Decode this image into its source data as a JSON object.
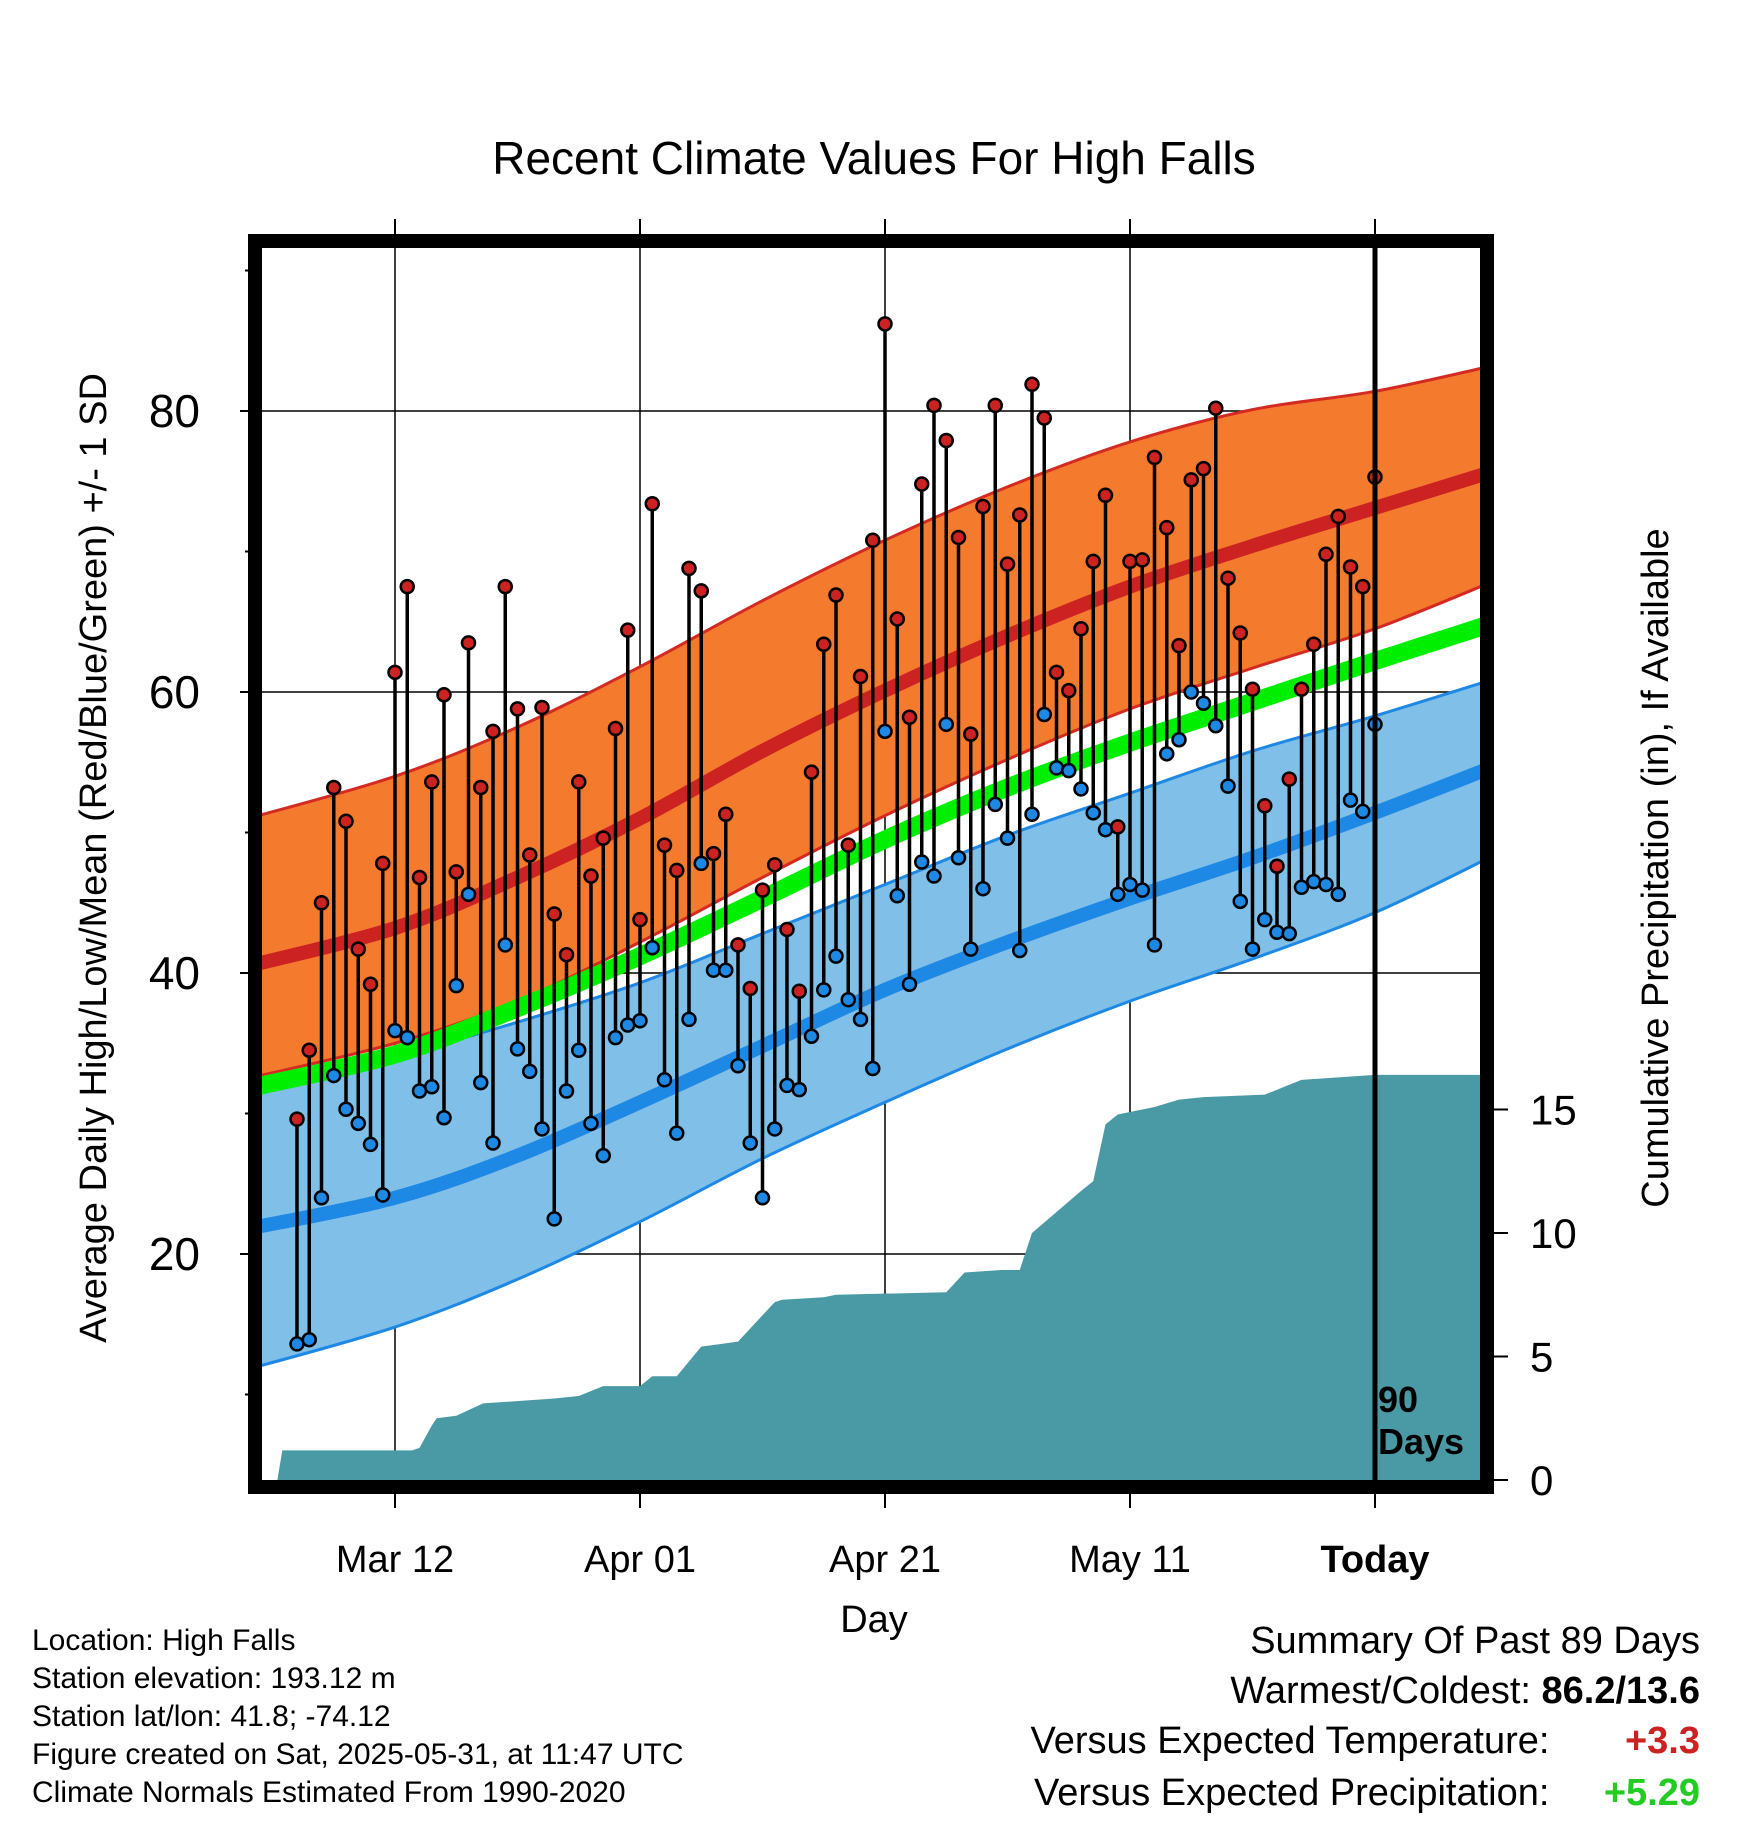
{
  "chart_data": {
    "type": "line",
    "title": "Recent Climate Values For High Falls",
    "xlabel": "Day",
    "ylabel": "Average Daily High/Low/Mean (Red/Blue/Green) +/- 1 SD",
    "y2label": "Cumulative Precipitation (in), If Available",
    "ylim": [
      3,
      90
    ],
    "y2lim": [
      0,
      17.7
    ],
    "xlim": [
      -11,
      90
    ],
    "yticks": [
      20,
      40,
      60,
      80
    ],
    "yticks_minor": [
      10,
      30,
      50,
      70,
      90
    ],
    "y2ticks": [
      0,
      5,
      10,
      15
    ],
    "xticks": [
      {
        "day": 1,
        "label": "Mar 12"
      },
      {
        "day": 21,
        "label": "Apr 01"
      },
      {
        "day": 41,
        "label": "Apr 21"
      },
      {
        "day": 61,
        "label": "May 11"
      },
      {
        "day": 81,
        "label": "Today"
      }
    ],
    "grid": true,
    "today_day": 81,
    "today_label_line1": "90",
    "today_label_line2": "Days",
    "normals": {
      "day": [
        -11,
        1,
        11,
        21,
        31,
        41,
        51,
        61,
        71,
        81,
        91
      ],
      "high_mean": [
        40.5,
        43.2,
        46.8,
        51.0,
        55.8,
        60.1,
        64.0,
        67.5,
        70.4,
        73.1,
        75.8
      ],
      "high_upper": [
        51.0,
        54.0,
        57.5,
        61.8,
        66.5,
        70.8,
        74.6,
        77.8,
        80.1,
        81.4,
        83.3
      ],
      "high_lower": [
        32.5,
        35.0,
        38.0,
        42.2,
        46.8,
        51.2,
        55.2,
        58.8,
        61.7,
        64.5,
        68.0
      ],
      "low_mean": [
        21.8,
        24.0,
        27.0,
        30.8,
        34.8,
        38.8,
        42.2,
        45.3,
        48.2,
        51.4,
        54.8
      ],
      "low_upper": [
        31.2,
        34.0,
        36.5,
        39.3,
        42.8,
        46.3,
        49.8,
        52.8,
        55.8,
        58.3,
        61.0
      ],
      "low_lower": [
        11.8,
        14.8,
        18.2,
        22.3,
        26.8,
        30.8,
        34.6,
        38.0,
        41.0,
        44.3,
        48.5
      ],
      "daily_mean": [
        31.8,
        34.2,
        37.5,
        41.2,
        45.3,
        49.5,
        53.2,
        56.4,
        59.3,
        62.2,
        65.0
      ]
    },
    "series": [
      {
        "name": "High",
        "color": "#cc2222",
        "values": [
          29.6,
          34.5,
          45.0,
          53.2,
          50.8,
          41.7,
          39.2,
          47.8,
          61.4,
          67.5,
          46.8,
          53.6,
          59.8,
          47.2,
          63.5,
          53.2,
          57.2,
          67.5,
          58.8,
          48.4,
          58.9,
          44.2,
          41.3,
          53.6,
          46.9,
          49.6,
          57.4,
          64.4,
          43.8,
          73.4,
          49.1,
          47.3,
          68.8,
          67.2,
          48.5,
          51.3,
          42.0,
          38.9,
          45.9,
          47.7,
          43.1,
          38.7,
          54.3,
          63.4,
          66.9,
          49.1,
          61.1,
          70.8,
          86.2,
          65.2,
          58.2,
          74.8,
          80.4,
          77.9,
          71.0,
          57.0,
          73.2,
          80.4,
          69.1,
          72.6,
          81.9,
          79.5,
          61.4,
          60.1,
          64.5,
          69.3,
          74.0,
          50.4,
          69.3,
          69.4,
          76.7,
          71.7,
          63.3,
          75.1,
          75.9,
          80.2,
          68.1,
          64.2,
          60.2,
          51.9,
          47.6,
          53.8,
          60.2,
          63.4,
          69.8,
          72.5,
          68.9,
          67.5,
          75.3
        ]
      },
      {
        "name": "Low",
        "color": "#1e88e5",
        "values": [
          13.6,
          13.9,
          24.0,
          32.7,
          30.3,
          29.3,
          27.8,
          24.2,
          35.9,
          35.4,
          31.6,
          31.9,
          29.7,
          39.1,
          45.6,
          32.2,
          27.9,
          42.0,
          34.6,
          33.0,
          28.9,
          22.5,
          31.6,
          34.5,
          29.3,
          27.0,
          35.4,
          36.3,
          36.6,
          41.8,
          32.4,
          28.6,
          36.7,
          47.8,
          40.2,
          40.2,
          33.4,
          27.9,
          24.0,
          28.9,
          32.0,
          31.7,
          35.5,
          38.8,
          41.2,
          38.1,
          36.7,
          33.2,
          57.2,
          45.5,
          39.2,
          47.9,
          46.9,
          57.7,
          48.2,
          41.7,
          46.0,
          52.0,
          49.6,
          41.6,
          51.3,
          58.4,
          54.6,
          54.4,
          53.1,
          51.4,
          50.2,
          45.6,
          46.3,
          45.9,
          42.0,
          55.6,
          56.6,
          60.0,
          59.2,
          57.6,
          53.3,
          45.1,
          41.7,
          43.8,
          42.9,
          42.8,
          46.1,
          46.5,
          46.3,
          45.6,
          52.3,
          51.5,
          57.7
        ]
      },
      {
        "name": "Cumulative Precipitation",
        "color": "#4a9aa5",
        "days": [
          -11,
          -8.6,
          -8.2,
          -1,
          0,
          2.4,
          3,
          4,
          4.4,
          6,
          8.2,
          14,
          16,
          18,
          21,
          22,
          24,
          26,
          29,
          32,
          32.6,
          36,
          37,
          46,
          47.5,
          50.5,
          52,
          53,
          57,
          58,
          59,
          60,
          62,
          63,
          65,
          67,
          72,
          74,
          75,
          81,
          90
        ],
        "values": [
          0,
          0,
          1.2,
          1.2,
          1.2,
          1.2,
          1.3,
          2.2,
          2.5,
          2.6,
          3.1,
          3.3,
          3.4,
          3.8,
          3.8,
          4.2,
          4.2,
          5.4,
          5.6,
          7.2,
          7.3,
          7.4,
          7.5,
          7.6,
          8.4,
          8.5,
          8.5,
          10.0,
          11.7,
          12.1,
          14.4,
          14.8,
          15.0,
          15.1,
          15.4,
          15.5,
          15.6,
          16.0,
          16.2,
          16.4,
          16.4
        ]
      }
    ]
  },
  "info": {
    "location": "Location: High Falls",
    "elevation": "Station elevation: 193.12 m",
    "latlon": "Station lat/lon: 41.8; -74.12",
    "created": "Figure created on Sat, 2025-05-31, at 11:47 UTC",
    "normals": "Climate Normals Estimated From 1990-2020"
  },
  "summary": {
    "title": "Summary Of Past 89 Days",
    "warm_cold_label": "Warmest/Coldest:",
    "warm_cold_value": "86.2/13.6",
    "temp_label": "Versus Expected Temperature:",
    "temp_value": "+3.3",
    "temp_color": "#cc2222",
    "precip_label": "Versus Expected Precipitation:",
    "precip_value": "+5.29",
    "precip_color": "#22cc22"
  },
  "colors": {
    "high_band": "#f47a2e",
    "high_edge": "#d42a22",
    "high_mean": "#cc2222",
    "low_band": "#80c0e8",
    "low_edge": "#1e88e5",
    "low_mean": "#1e88e5",
    "daily_mean": "#00ee00",
    "precip": "#4a9aa5",
    "stick": "#000000"
  }
}
